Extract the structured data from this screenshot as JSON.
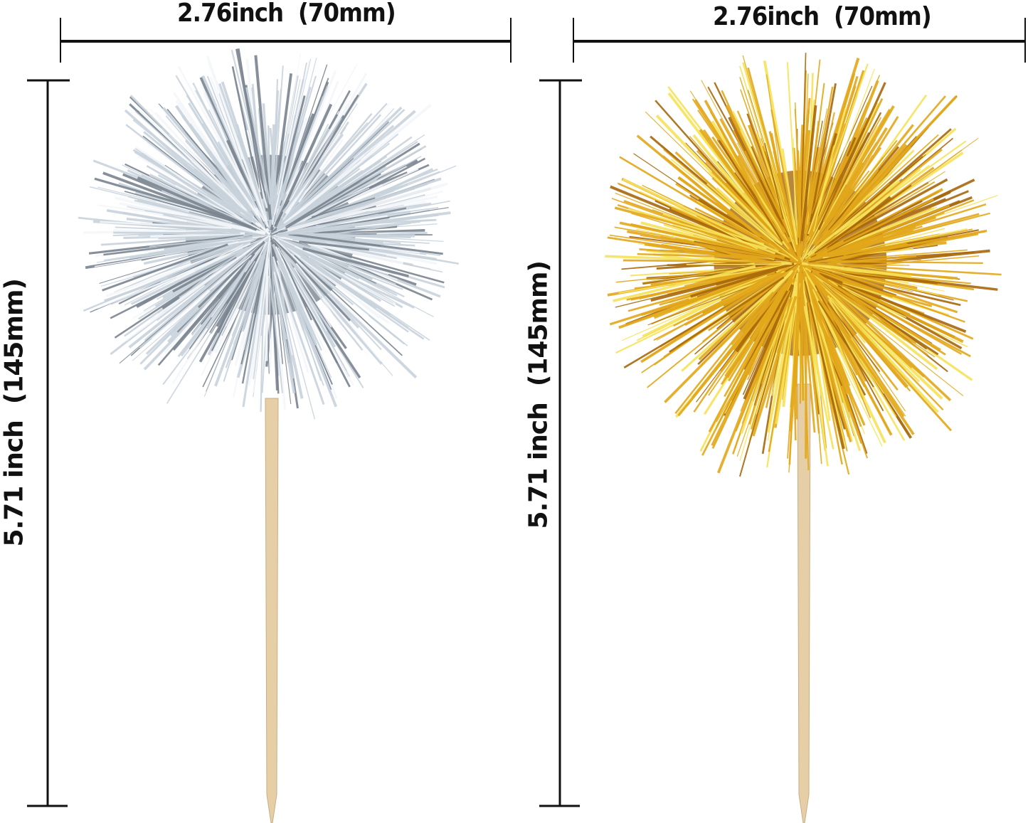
{
  "products": [
    {
      "name": "silver",
      "width_label": "2.76inch  (70mm)",
      "height_label": "5.71 inch  (145mm)",
      "color": "#c9d3dc",
      "highlight": "#f4f7fa",
      "shadow": "#7b8590"
    },
    {
      "name": "gold",
      "width_label": "2.76inch  (70mm)",
      "height_label": "5.71 inch  (145mm)",
      "color": "#e3a81a",
      "highlight": "#f7e35a",
      "shadow": "#a8680c"
    }
  ],
  "colors": {
    "line": "#111111",
    "stick": "#e6cfa6",
    "stick_edge": "#c9ae82"
  }
}
